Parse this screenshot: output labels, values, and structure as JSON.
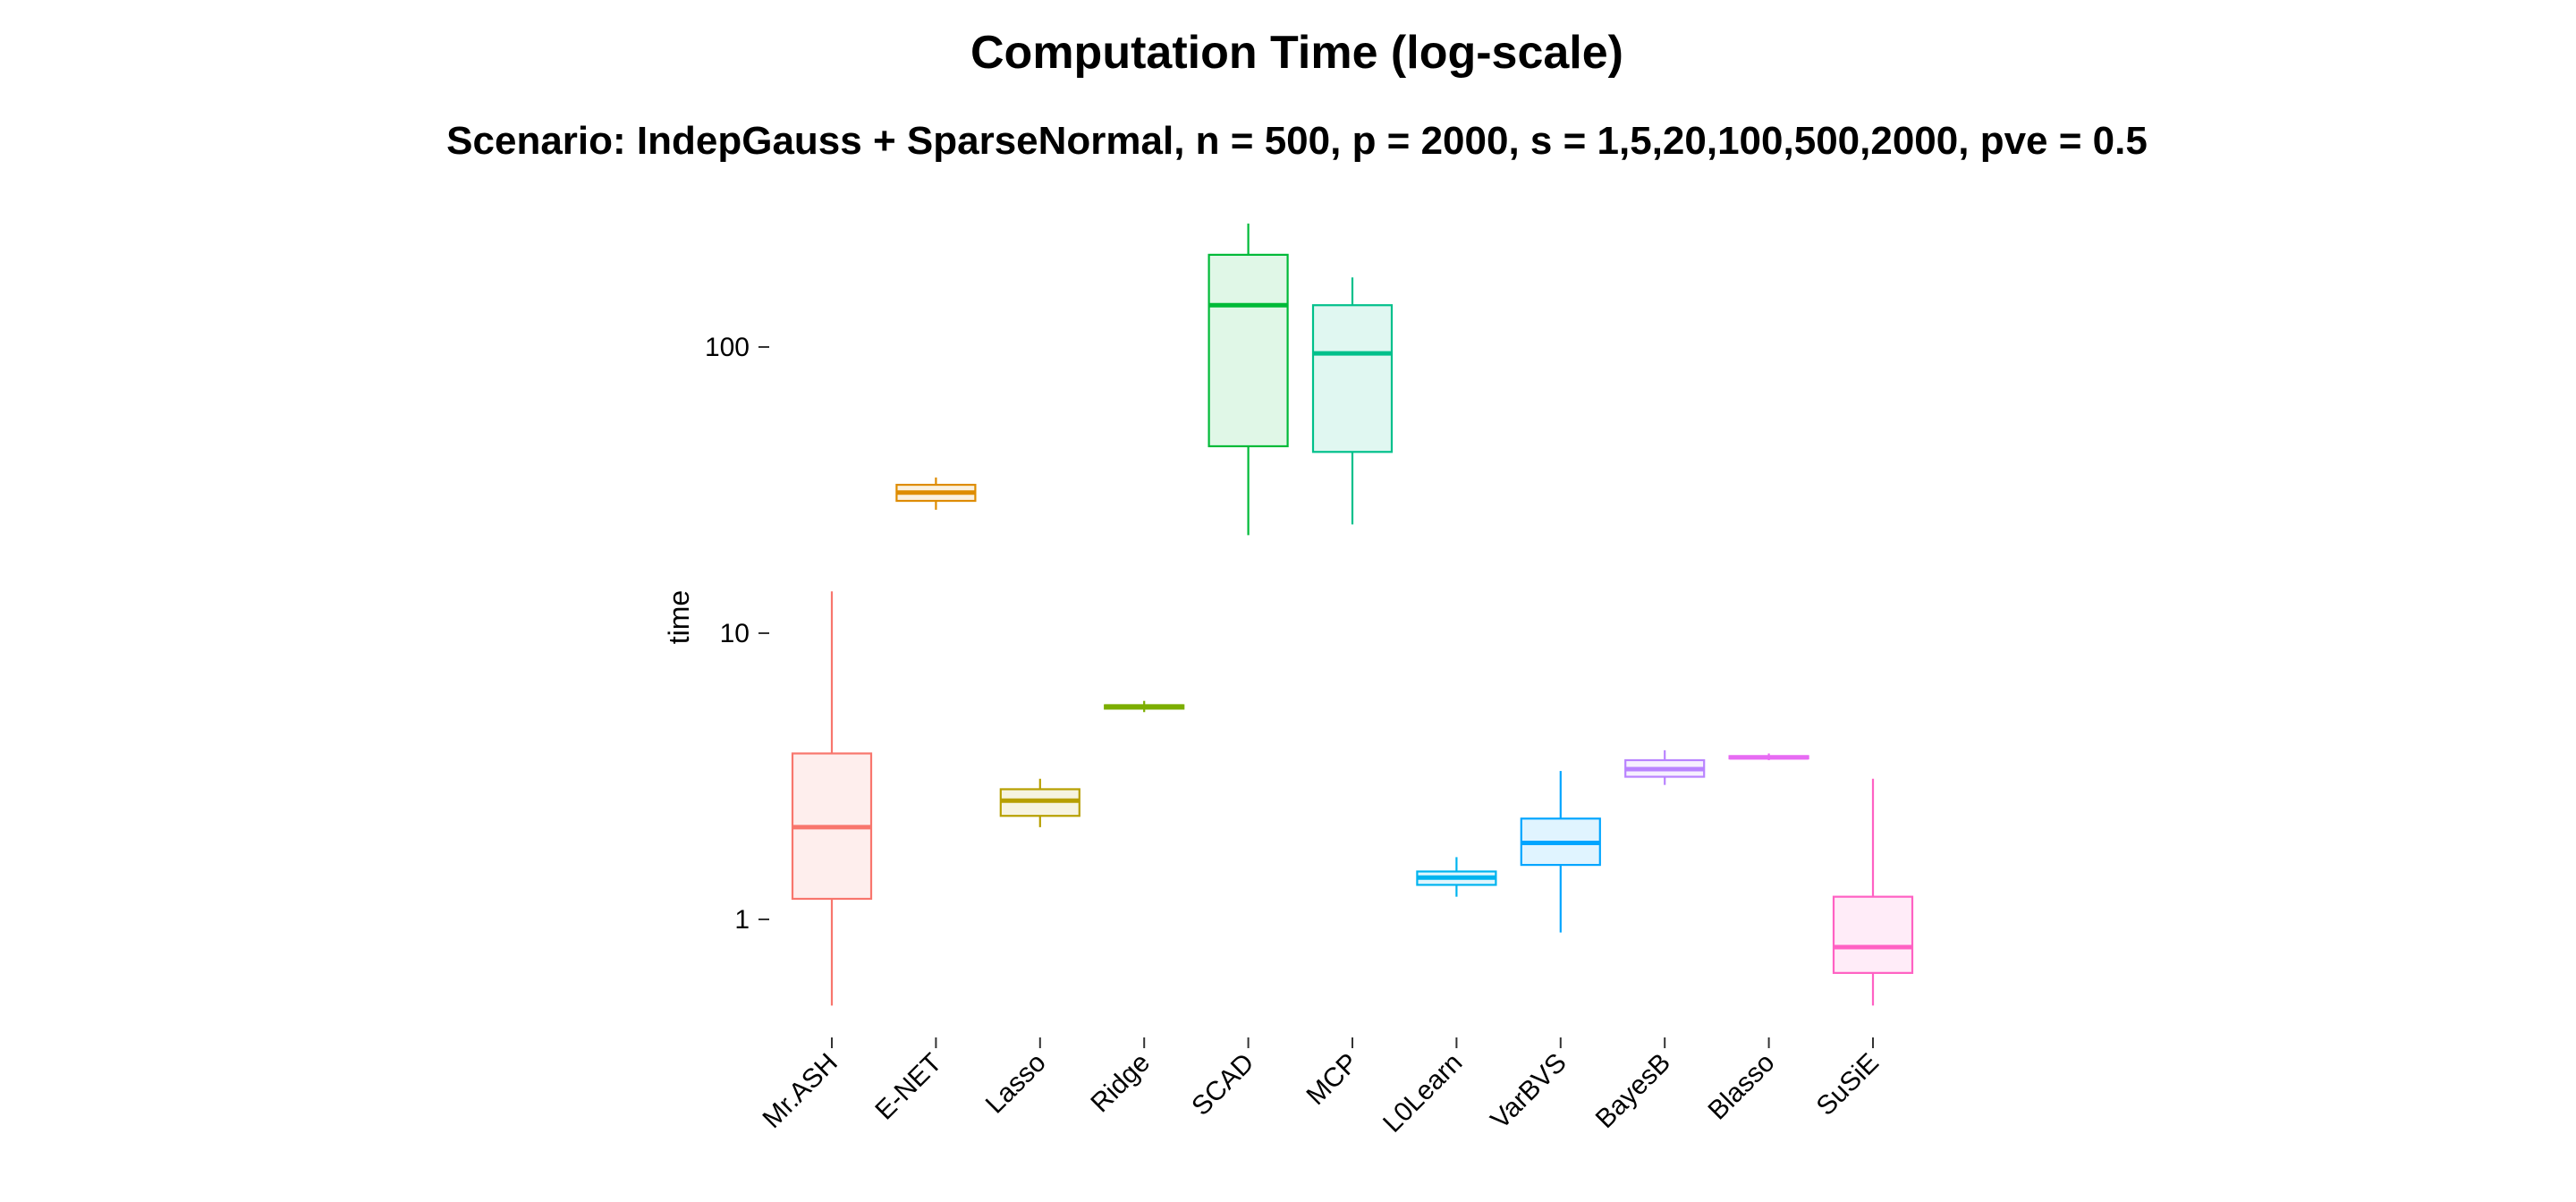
{
  "chart_data": {
    "type": "boxplot",
    "title": "Computation Time (log-scale)",
    "subtitle": "Scenario: IndepGauss + SparseNormal, n = 500, p = 2000, s = 1,5,20,100,500,2000, pve = 0.5",
    "xlabel": "",
    "ylabel": "time",
    "y_scale": "log10",
    "ylim": [
      0.4,
      300
    ],
    "y_ticks": [
      {
        "value": 1,
        "label": "1"
      },
      {
        "value": 10,
        "label": "10"
      },
      {
        "value": 100,
        "label": "100"
      }
    ],
    "grid": false,
    "legend": "none",
    "boxes": [
      {
        "name": "Mr.ASH",
        "color": "#F8766D",
        "min": 0.5,
        "q1": 1.18,
        "median": 2.1,
        "q3": 3.8,
        "max": 14
      },
      {
        "name": "E-NET",
        "color": "#DE8C00",
        "min": 27,
        "q1": 29,
        "median": 31,
        "q3": 33,
        "max": 35
      },
      {
        "name": "Lasso",
        "color": "#B79F00",
        "min": 2.1,
        "q1": 2.3,
        "median": 2.6,
        "q3": 2.85,
        "max": 3.1
      },
      {
        "name": "Ridge",
        "color": "#7CAE00",
        "min": 5.3,
        "q1": 5.45,
        "median": 5.55,
        "q3": 5.6,
        "max": 5.8
      },
      {
        "name": "SCAD",
        "color": "#00BA38",
        "min": 22,
        "q1": 45,
        "median": 140,
        "q3": 210,
        "max": 270
      },
      {
        "name": "MCP",
        "color": "#00C08B",
        "min": 24,
        "q1": 43,
        "median": 95,
        "q3": 140,
        "max": 175
      },
      {
        "name": "L0Learn",
        "color": "#00B4EF",
        "min": 1.2,
        "q1": 1.32,
        "median": 1.4,
        "q3": 1.47,
        "max": 1.65
      },
      {
        "name": "VarBVS",
        "color": "#00A5FF",
        "min": 0.9,
        "q1": 1.55,
        "median": 1.85,
        "q3": 2.25,
        "max": 3.3
      },
      {
        "name": "BayesB",
        "color": "#B983FF",
        "min": 2.95,
        "q1": 3.15,
        "median": 3.35,
        "q3": 3.6,
        "max": 3.9
      },
      {
        "name": "Blasso",
        "color": "#E76BF3",
        "min": 3.6,
        "q1": 3.65,
        "median": 3.68,
        "q3": 3.72,
        "max": 3.8
      },
      {
        "name": "SuSiE",
        "color": "#FF61C3",
        "min": 0.5,
        "q1": 0.65,
        "median": 0.8,
        "q3": 1.2,
        "max": 3.1
      }
    ]
  }
}
